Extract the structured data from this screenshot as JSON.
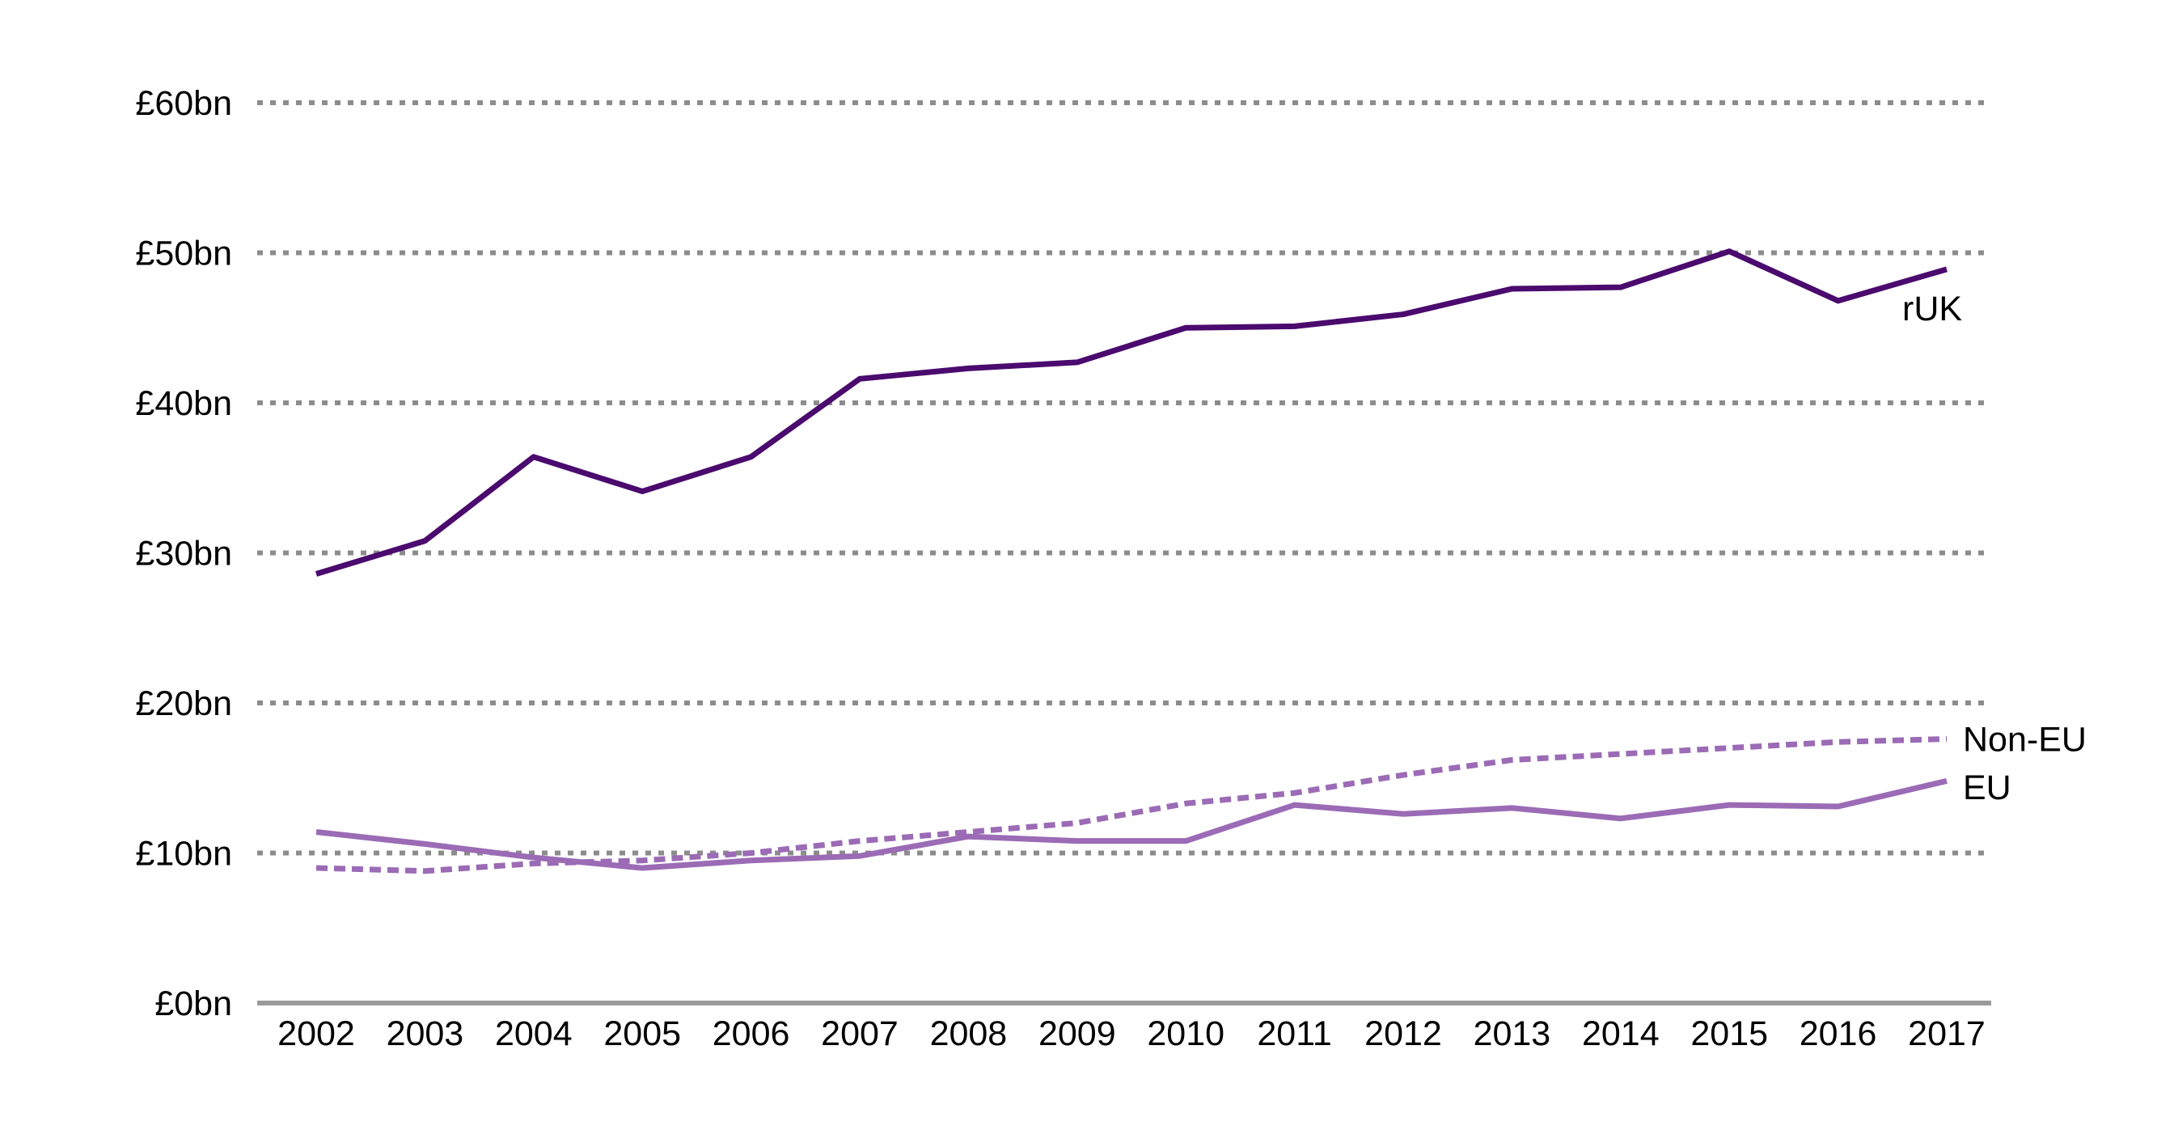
{
  "chart_data": {
    "type": "line",
    "title": "",
    "xlabel": "",
    "ylabel": "",
    "x": [
      "2002",
      "2003",
      "2004",
      "2005",
      "2006",
      "2007",
      "2008",
      "2009",
      "2010",
      "2011",
      "2012",
      "2013",
      "2014",
      "2015",
      "2016",
      "2017"
    ],
    "ylim": [
      0,
      60
    ],
    "yticks": [
      0,
      10,
      20,
      30,
      40,
      50,
      60
    ],
    "ytick_labels": [
      "£0bn",
      "£10bn",
      "£20bn",
      "£30bn",
      "£40bn",
      "£50bn",
      "£60bn"
    ],
    "grid": "horizontal dotted",
    "series": [
      {
        "name": "rUK",
        "color": "#4b0a6e",
        "style": "solid",
        "values": [
          28.6,
          30.8,
          36.4,
          34.1,
          36.4,
          41.6,
          42.3,
          42.7,
          45.0,
          45.1,
          45.9,
          47.6,
          47.7,
          50.1,
          46.8,
          48.9
        ]
      },
      {
        "name": "Non-EU",
        "color": "#9b6bb5",
        "style": "dashed",
        "values": [
          9.0,
          8.8,
          9.3,
          9.5,
          10.0,
          10.8,
          11.4,
          12.0,
          13.3,
          14.0,
          15.2,
          16.2,
          16.6,
          17.0,
          17.4,
          17.6
        ]
      },
      {
        "name": "EU",
        "color": "#9b6bb5",
        "style": "solid",
        "values": [
          11.4,
          10.6,
          9.7,
          9.0,
          9.5,
          9.8,
          11.1,
          10.8,
          10.8,
          13.2,
          12.6,
          13.0,
          12.3,
          13.2,
          13.1,
          14.8
        ]
      }
    ]
  }
}
